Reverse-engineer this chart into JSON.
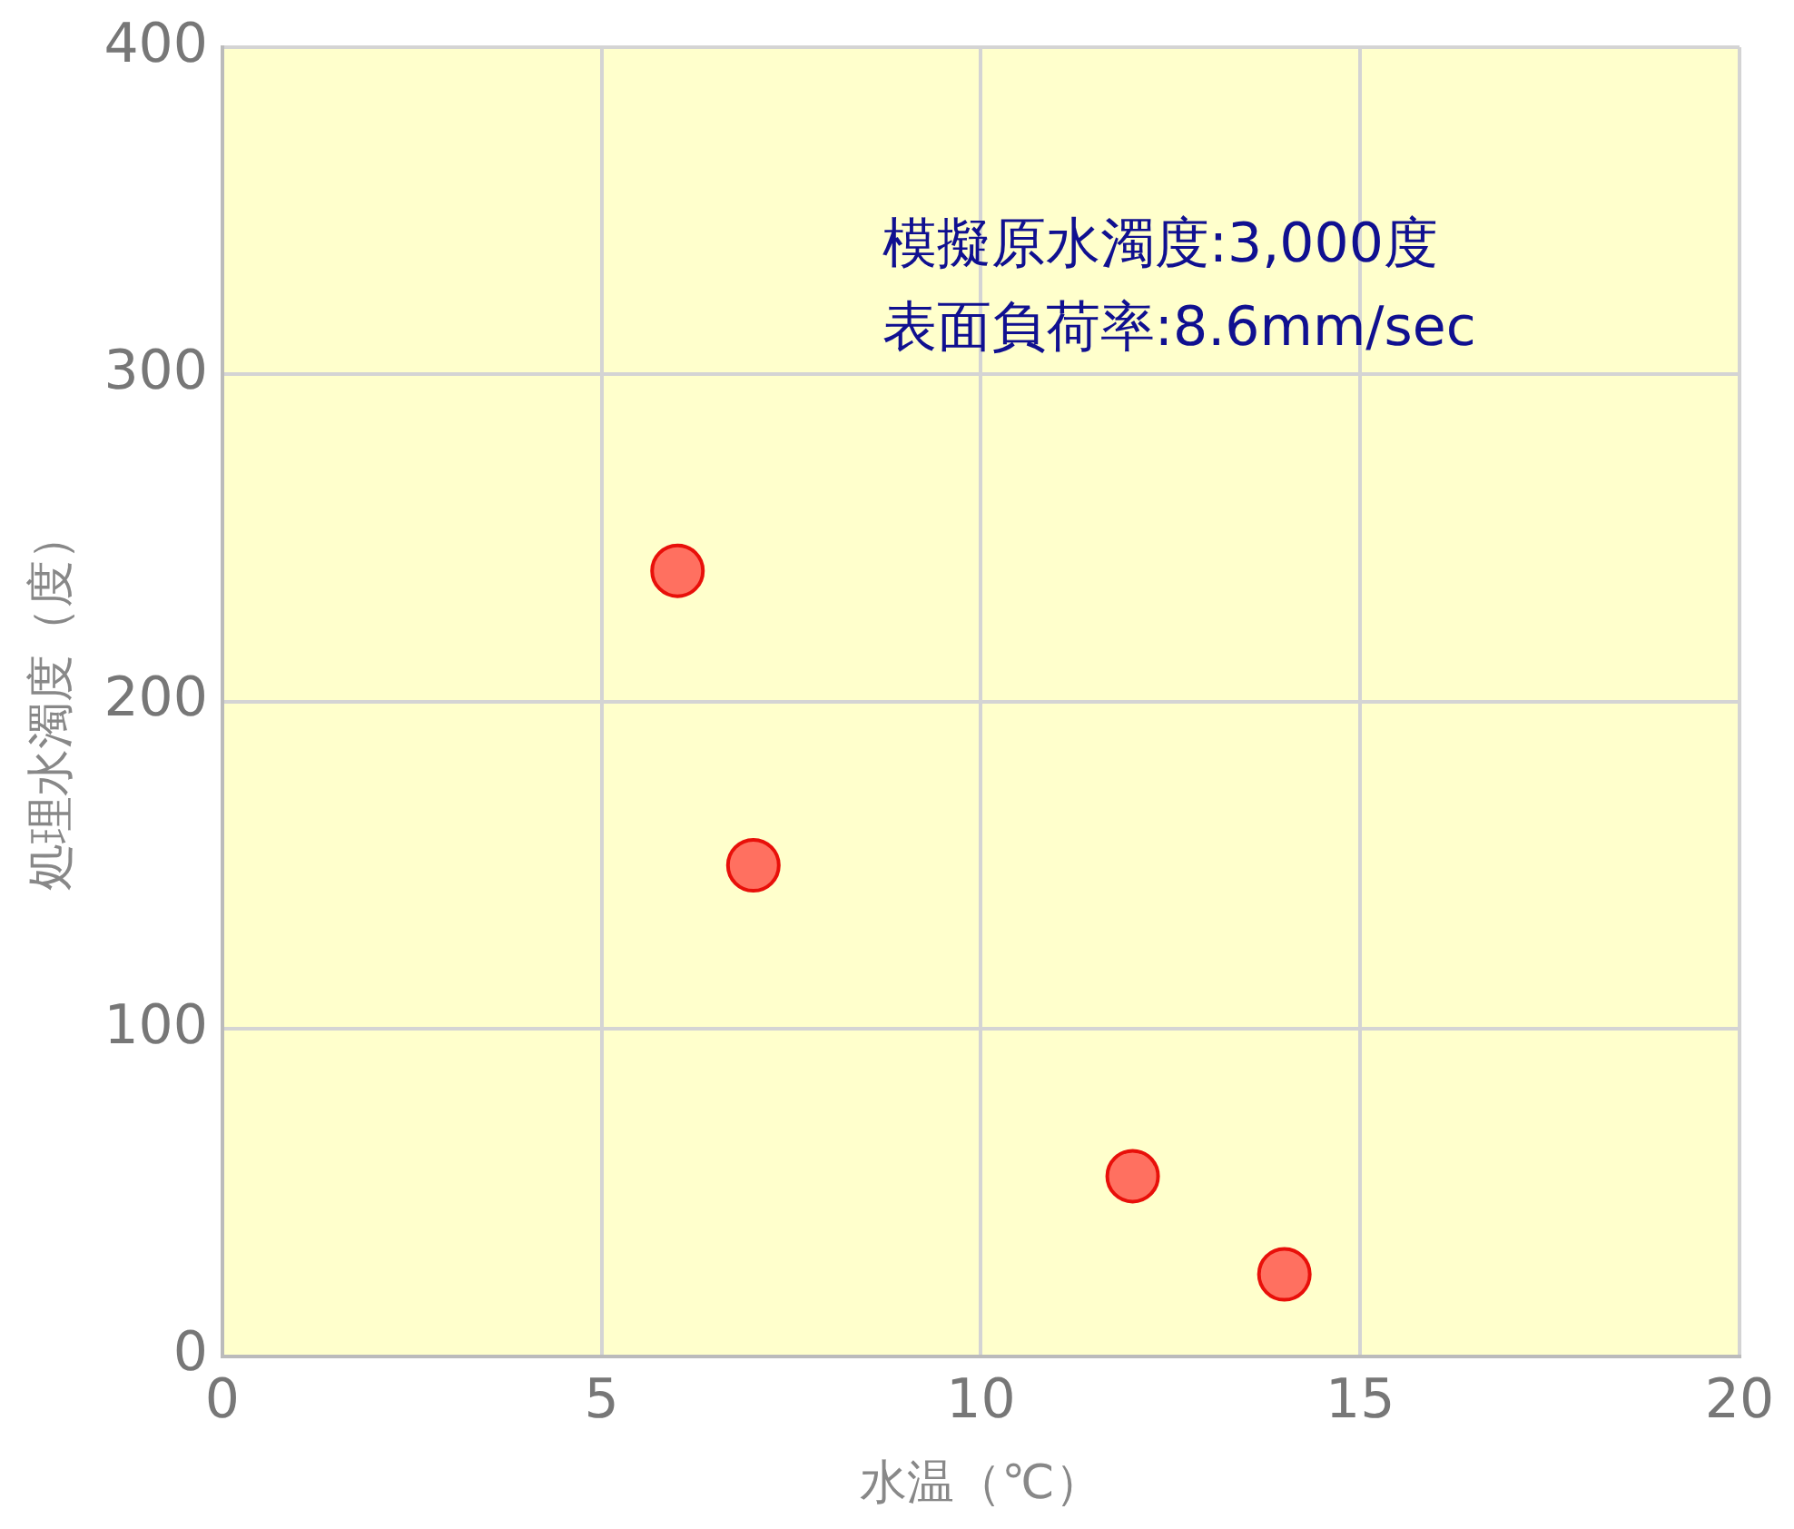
{
  "chart_data": {
    "type": "scatter",
    "xlabel": "水温（℃）",
    "ylabel": "処理水濁度（度）",
    "annotations": [
      "模擬原水濁度:3,000度",
      "表面負荷率:8.6mm/sec"
    ],
    "series": [
      {
        "color": "#ff7060",
        "x": [
          6,
          7,
          12,
          14
        ],
        "values": [
          240,
          150,
          55,
          25
        ]
      }
    ],
    "xlim": [
      0,
      20
    ],
    "xticks": [
      0,
      5,
      10,
      15,
      20
    ],
    "ylim": [
      0,
      400
    ],
    "yticks": [
      0,
      100,
      200,
      300,
      400
    ],
    "grid": true,
    "legend": false,
    "marker": "circle"
  }
}
